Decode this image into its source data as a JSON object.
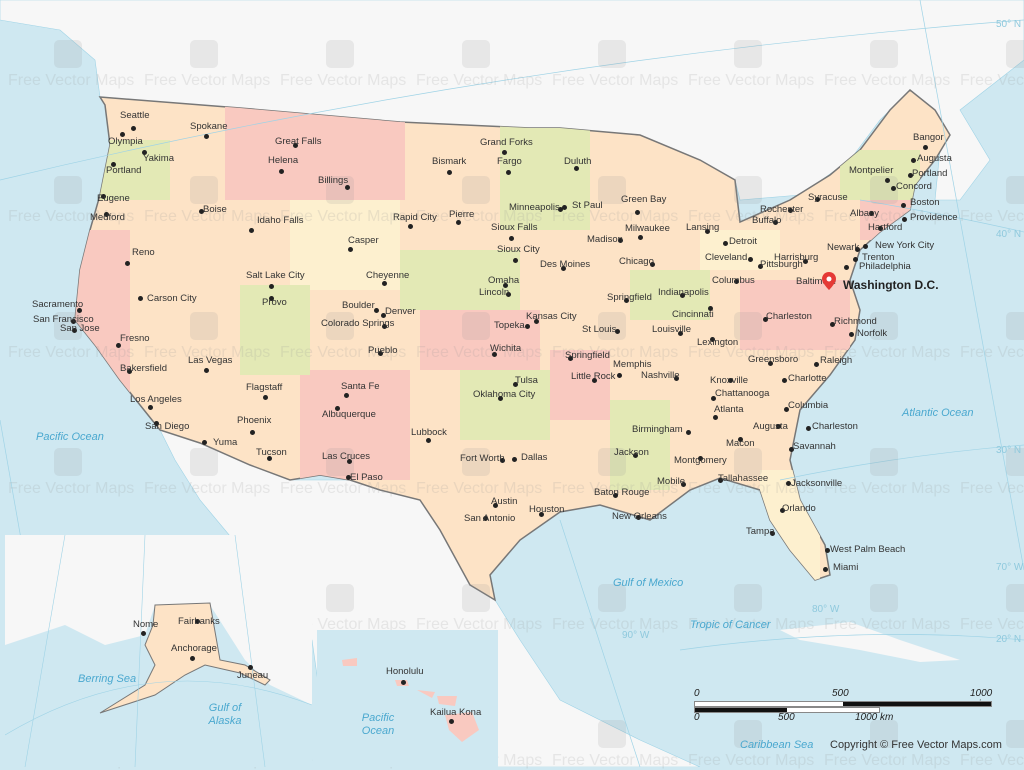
{
  "map": {
    "capital": {
      "name": "Washington D.C.",
      "icon": "map-pin-icon",
      "color": "#e53935"
    },
    "cities": [
      "Seattle",
      "Olympia",
      "Spokane",
      "Yakima",
      "Portland",
      "Eugene",
      "Medford",
      "Boise",
      "Idaho Falls",
      "Great Falls",
      "Helena",
      "Billings",
      "Bismark",
      "Grand Forks",
      "Fargo",
      "Duluth",
      "Minneapolis",
      "St Paul",
      "Rapid City",
      "Pierre",
      "Sioux Falls",
      "Sioux City",
      "Casper",
      "Salt Lake City",
      "Provo",
      "Cheyenne",
      "Reno",
      "Carson City",
      "Sacramento",
      "San Francisco",
      "San Jose",
      "Fresno",
      "Bakersfield",
      "Los Angeles",
      "San Diego",
      "Las Vegas",
      "Flagstaff",
      "Phoenix",
      "Yuma",
      "Tucson",
      "Boulder",
      "Denver",
      "Colorado Springs",
      "Pueblo",
      "Santa Fe",
      "Albuquerque",
      "Las Cruces",
      "El Paso",
      "Lubbock",
      "Omaha",
      "Lincoln",
      "Des Moines",
      "Topeka",
      "Kansas City",
      "Wichita",
      "Tulsa",
      "Oklahoma City",
      "Fort Worth",
      "Dallas",
      "Austin",
      "San Antonio",
      "Houston",
      "Madison",
      "Green Bay",
      "Milwaukee",
      "Chicago",
      "Springfield",
      "St Louis",
      "Springfield",
      "Little Rock",
      "Memphis",
      "Jackson",
      "Baton Rouge",
      "New Orleans",
      "Mobile",
      "Birmingham",
      "Montgomery",
      "Nashville",
      "Louisville",
      "Indianapolis",
      "Lansing",
      "Detroit",
      "Cleveland",
      "Columbus",
      "Cincinnati",
      "Lexington",
      "Knoxville",
      "Chattanooga",
      "Atlanta",
      "Macon",
      "Augusta",
      "Columbia",
      "Charleston",
      "Savannah",
      "Tallahassee",
      "Jacksonville",
      "Orlando",
      "Tampa",
      "West Palm Beach",
      "Miami",
      "Charleston",
      "Pittsburgh",
      "Greensboro",
      "Charlotte",
      "Raleigh",
      "Richmond",
      "Norfolk",
      "Baltimore",
      "Harrisburg",
      "Philadelphia",
      "Trenton",
      "Newark",
      "New York City",
      "Hartford",
      "Albany",
      "Syracuse",
      "Rochester",
      "Buffalo",
      "Montpelier",
      "Concord",
      "Boston",
      "Providence",
      "Portland",
      "Augusta",
      "Bangor"
    ],
    "alaska_cities": [
      "Nome",
      "Fairbanks",
      "Anchorage",
      "Juneau"
    ],
    "hawaii_cities": [
      "Honolulu",
      "Kailua Kona"
    ],
    "water_labels": [
      "Pacific Ocean",
      "Atlantic Ocean",
      "Gulf of Mexico",
      "Tropic of Cancer",
      "Caribbean Sea",
      "Berring Sea",
      "Gulf of Alaska",
      "Pacific Ocean"
    ],
    "grid_labels": [
      "50° N",
      "40° N",
      "30° N",
      "20° N",
      "70° W",
      "80° W",
      "90° W"
    ],
    "colors": {
      "ocean": "#cfe8f1",
      "land": "#f7f7f7",
      "us_land": "#fde3c6",
      "state_pink": "#f9c9c0",
      "state_green": "#e3e9b5",
      "state_yellow": "#fdf0cf",
      "water_text": "#4aa8cf",
      "border": "#777777"
    }
  },
  "scale": {
    "miles": [
      "0",
      "500",
      "1000 mi"
    ],
    "km": [
      "0",
      "500",
      "1000 km"
    ]
  },
  "watermark": {
    "text": "Free Vector Maps",
    "url": "©freevectormaps.com"
  },
  "copyright": "Copyright © Free Vector Maps.com"
}
